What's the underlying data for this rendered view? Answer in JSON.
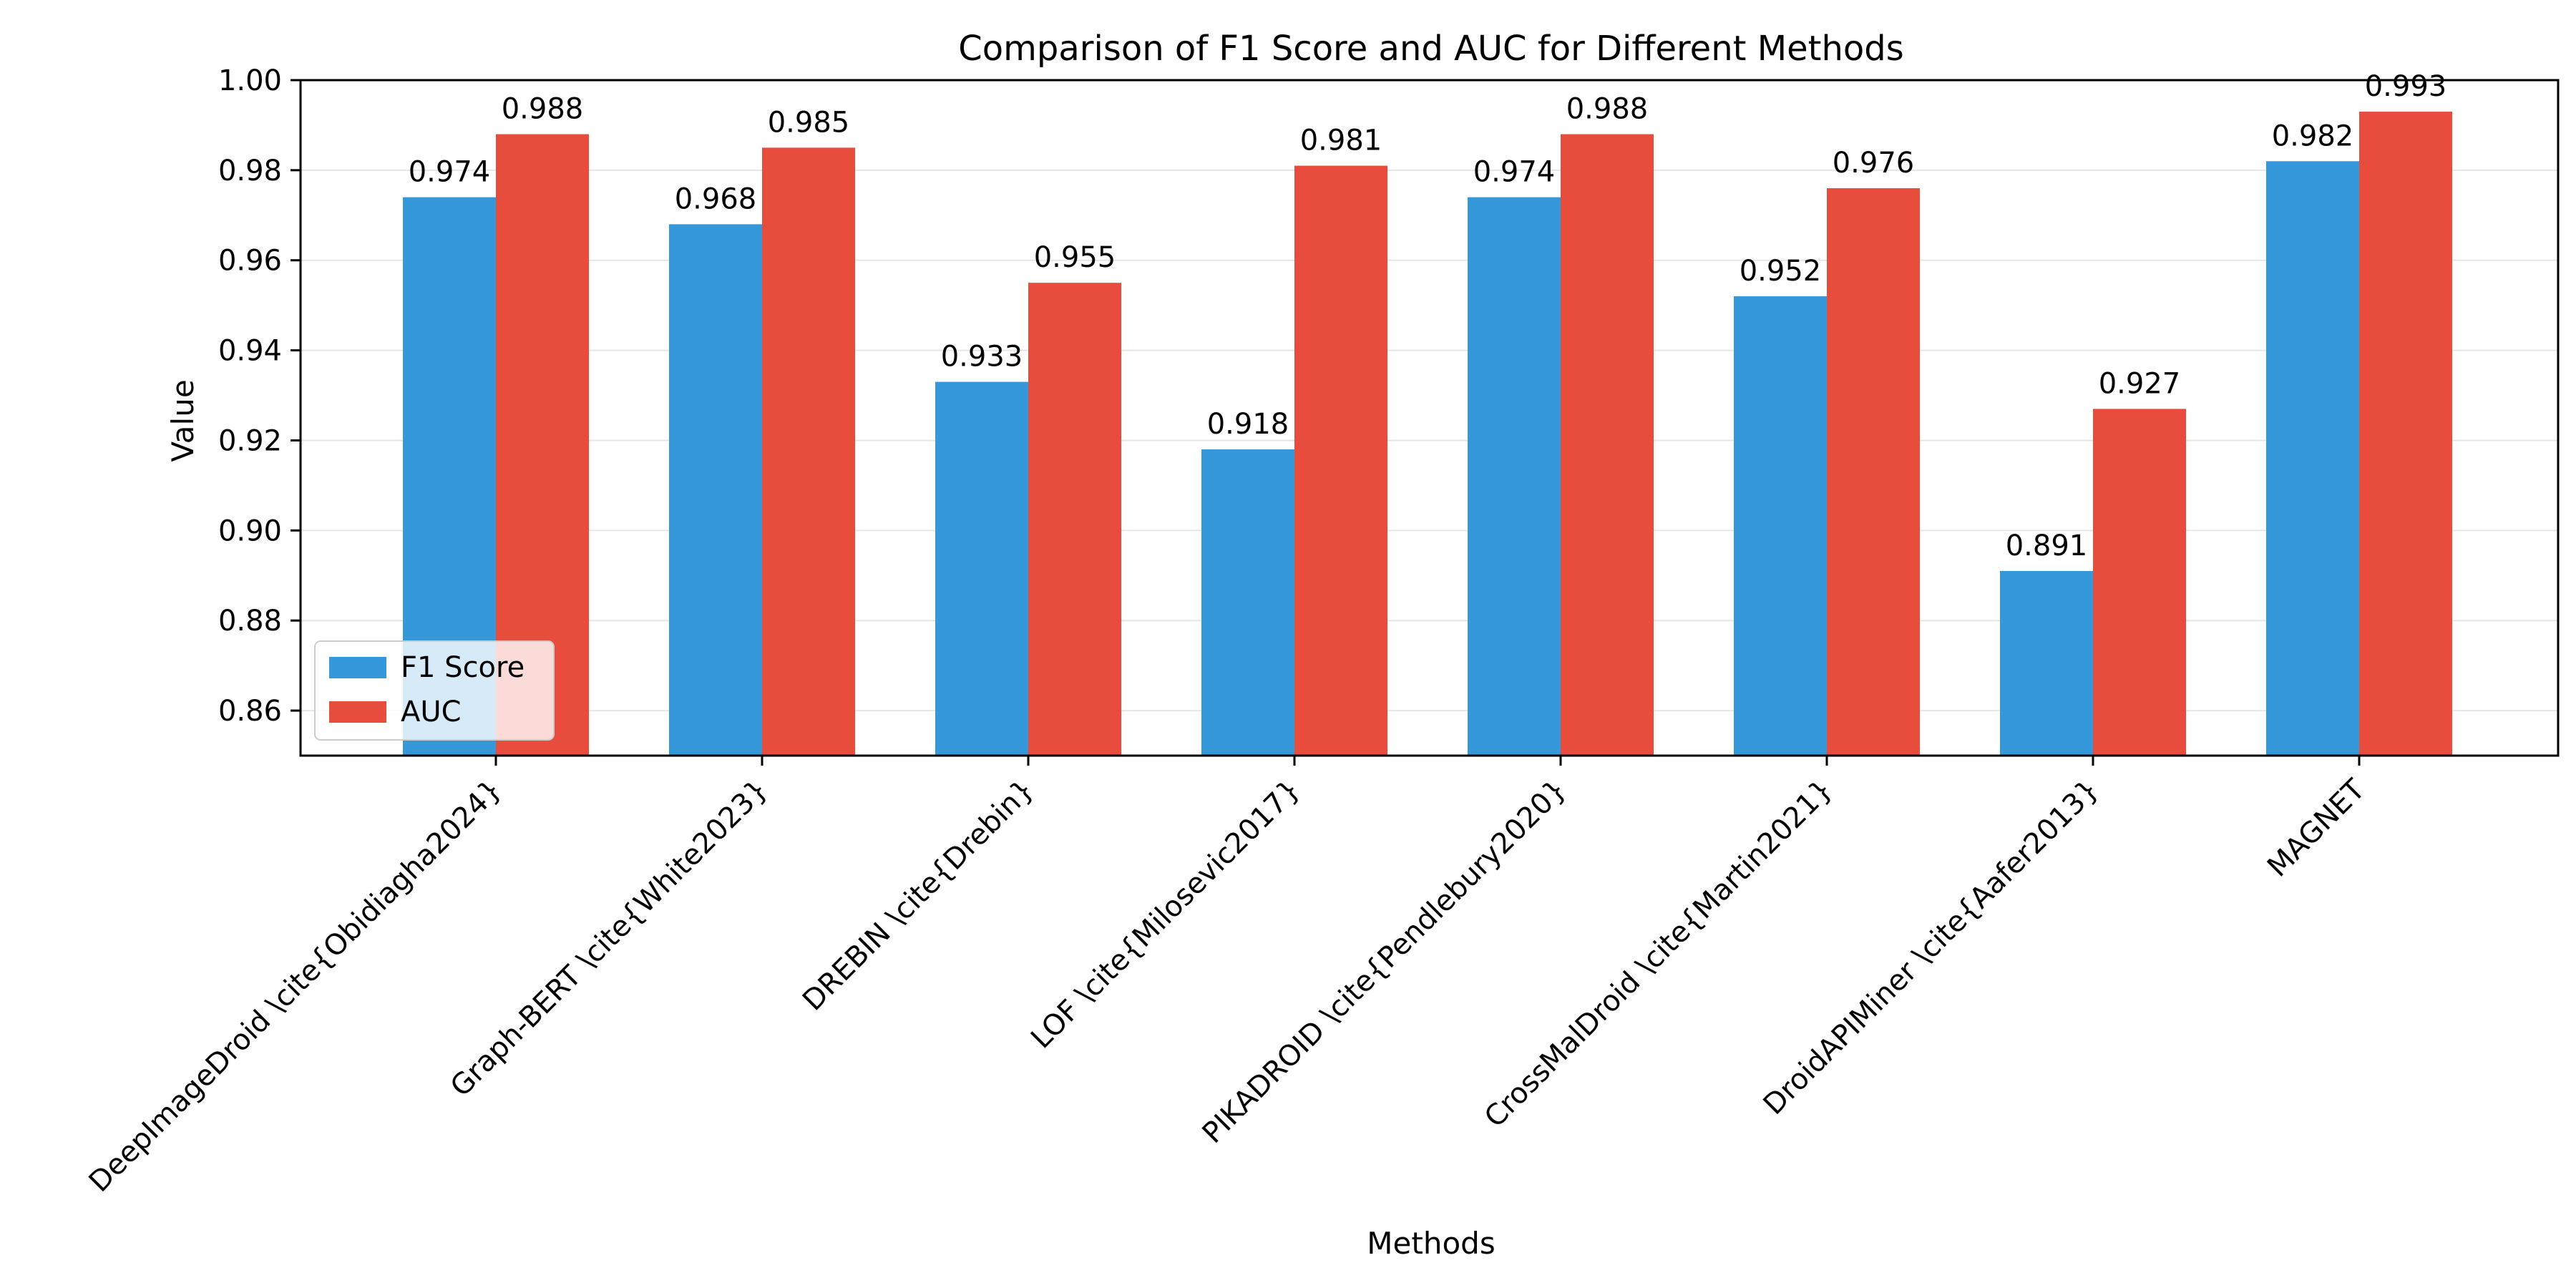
{
  "chart_data": {
    "type": "bar",
    "title": "Comparison of F1 Score and AUC for Different Methods",
    "xlabel": "Methods",
    "ylabel": "Value",
    "ylim": [
      0.85,
      1.0
    ],
    "yticks": [
      0.86,
      0.88,
      0.9,
      0.92,
      0.94,
      0.96,
      0.98,
      1.0
    ],
    "grid": "horizontal",
    "legend_position": "lower-left",
    "categories": [
      "DeepImageDroid \\cite{Obidiagha2024}",
      "Graph-BERT \\cite{White2023}",
      "DREBIN \\cite{Drebin}",
      "LOF \\cite{Milosevic2017}",
      "PIKADROID \\cite{Pendlebury2020}",
      "CrossMalDroid \\cite{Martin2021}",
      "DroidAPIMiner \\cite{Aafer2013}",
      "MAGNET"
    ],
    "series": [
      {
        "name": "F1 Score",
        "color": "#3498db",
        "values": [
          0.974,
          0.968,
          0.933,
          0.918,
          0.974,
          0.952,
          0.891,
          0.982
        ]
      },
      {
        "name": "AUC",
        "color": "#e74c3c",
        "values": [
          0.988,
          0.985,
          0.955,
          0.981,
          0.988,
          0.976,
          0.927,
          0.993
        ]
      }
    ]
  }
}
